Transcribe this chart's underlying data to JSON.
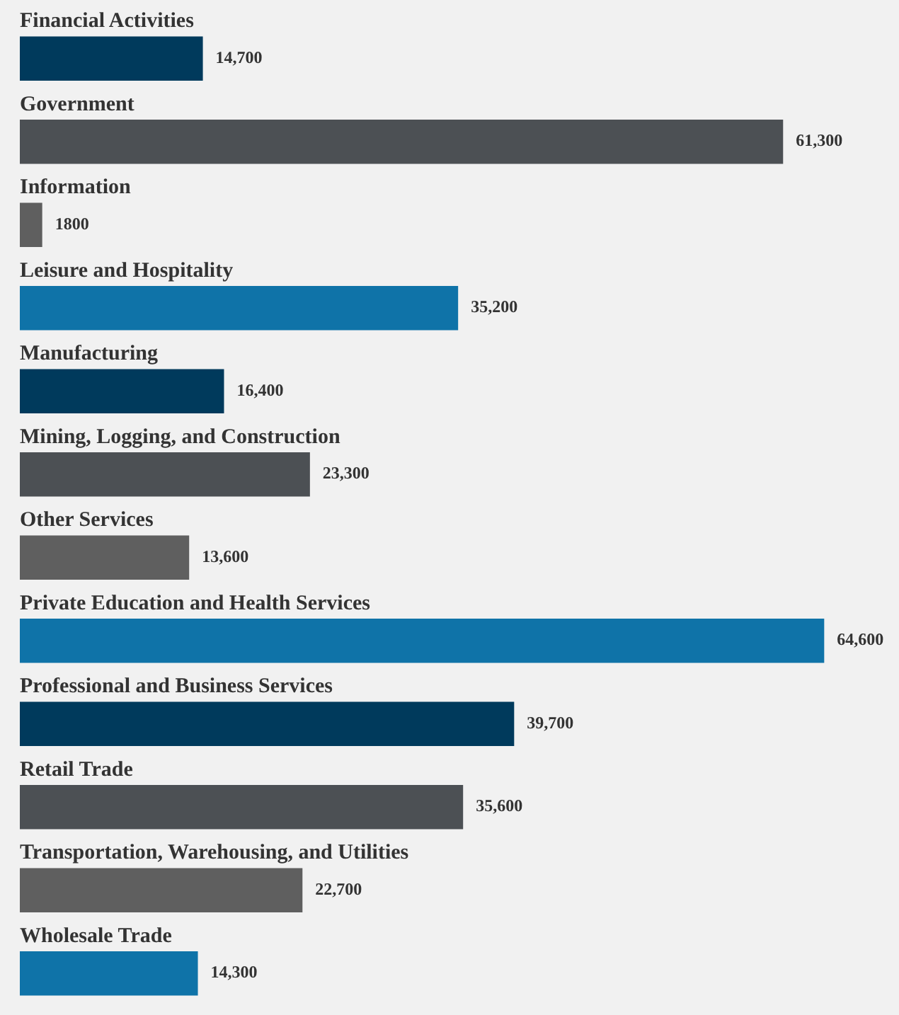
{
  "chart_data": {
    "type": "bar",
    "orientation": "horizontal",
    "categories": [
      "Financial Activities",
      "Government",
      "Information",
      "Leisure and Hospitality",
      "Manufacturing",
      "Mining, Logging, and Construction",
      "Other Services",
      "Private Education and Health Services",
      "Professional and Business Services",
      "Retail Trade",
      "Transportation, Warehousing, and Utilities",
      "Wholesale Trade"
    ],
    "values": [
      14700,
      61300,
      1800,
      35200,
      16400,
      23300,
      13600,
      64600,
      39700,
      35600,
      22700,
      14300
    ],
    "colors": [
      "#003a5c",
      "#4c5054",
      "#5f5f5f",
      "#0f73a8",
      "#003a5c",
      "#4c5054",
      "#5f5f5f",
      "#0f73a8",
      "#003a5c",
      "#4c5054",
      "#5f5f5f",
      "#0f73a8"
    ],
    "value_labels": [
      "14,700",
      "61,300",
      "1800",
      "35,200",
      "16,400",
      "23,300",
      "13,600",
      "64,600",
      "39,700",
      "35,600",
      "22,700",
      "14,300"
    ],
    "legend": false
  }
}
